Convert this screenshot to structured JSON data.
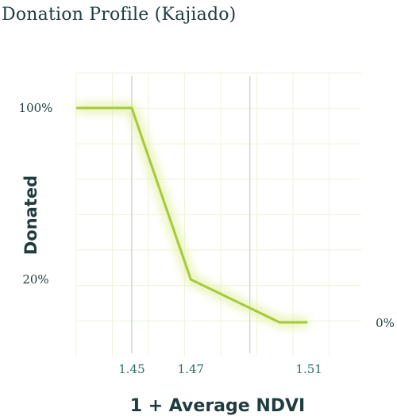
{
  "title": "Donation Profile (Kajiado)",
  "chart_data": {
    "type": "line",
    "title": "Donation Profile (Kajiado)",
    "xlabel": "1 + Average NDVI",
    "ylabel": "Donated",
    "xlim": [
      1.4312,
      1.5277
    ],
    "ylim": [
      0,
      100
    ],
    "x_ticks": [
      "1.45",
      "1.47",
      "1.51"
    ],
    "y_ticks": [
      "100%",
      "20%"
    ],
    "end_label": "0%",
    "series": [
      {
        "color": "#a6c93c",
        "points": [
          {
            "x": 1.4312,
            "y": 100
          },
          {
            "x": 1.45,
            "y": 100
          },
          {
            "x": 1.47,
            "y": 20
          },
          {
            "x": 1.5,
            "y": 0
          },
          {
            "x": 1.5095,
            "y": 0
          }
        ]
      }
    ],
    "grid": true,
    "highlight_gridlines_x": [
      1.45,
      1.49
    ]
  }
}
